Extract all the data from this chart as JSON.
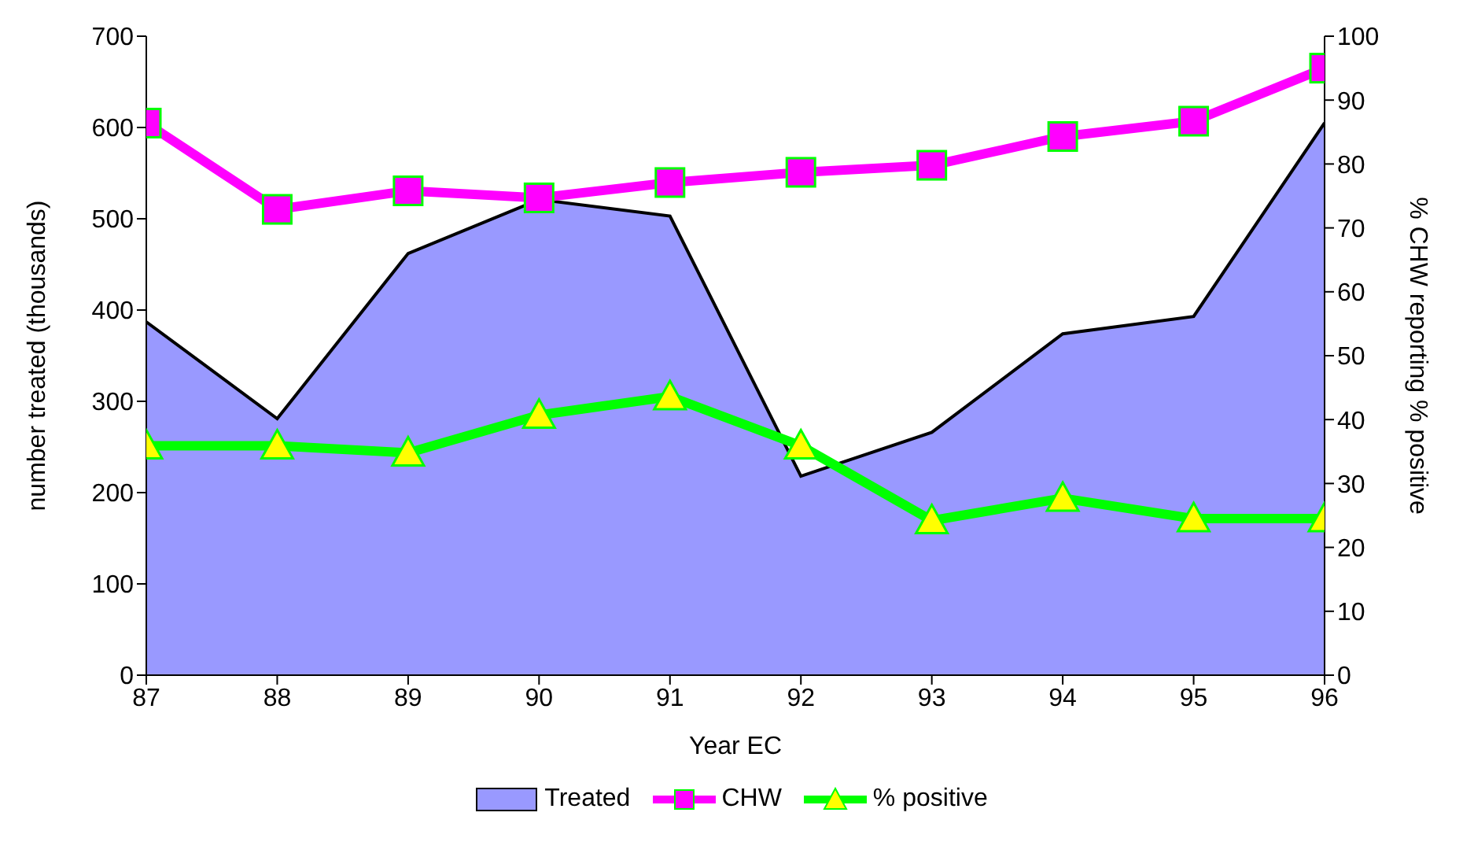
{
  "chart_data": {
    "type": "line",
    "xlabel": "Year EC",
    "ylabel": "number treated (thousands)",
    "y2label": "% CHW reporting % positive",
    "x": [
      87,
      88,
      89,
      90,
      91,
      92,
      93,
      94,
      95,
      96
    ],
    "xlim": [
      87,
      96
    ],
    "xticks": [
      87,
      88,
      89,
      90,
      91,
      92,
      93,
      94,
      95,
      96
    ],
    "ylim": [
      0,
      700
    ],
    "yticks": [
      0,
      100,
      200,
      300,
      400,
      500,
      600,
      700
    ],
    "y2lim": [
      0,
      100
    ],
    "y2ticks": [
      0,
      10,
      20,
      30,
      40,
      50,
      60,
      70,
      80,
      90,
      100
    ],
    "series": [
      {
        "name": "Treated",
        "type": "area",
        "color": "#9999ff",
        "marker": "none",
        "values": [
          387,
          281,
          462,
          521,
          503,
          218,
          266,
          374,
          393,
          605
        ]
      },
      {
        "name": "CHW",
        "axis": "y2",
        "color": "#ff00ff",
        "marker": "square",
        "values": [
          86.4,
          72.9,
          75.8,
          74.7,
          77.1,
          78.7,
          79.8,
          84.3,
          86.7,
          95
        ]
      },
      {
        "name": "% positive",
        "axis": "y2",
        "color": "#00ff00",
        "marker": "triangle",
        "values": [
          35.9,
          35.9,
          34.8,
          40.7,
          43.6,
          35.9,
          24.2,
          27.7,
          24.5,
          24.5
        ]
      }
    ],
    "grid": false,
    "legend": "bottom"
  }
}
